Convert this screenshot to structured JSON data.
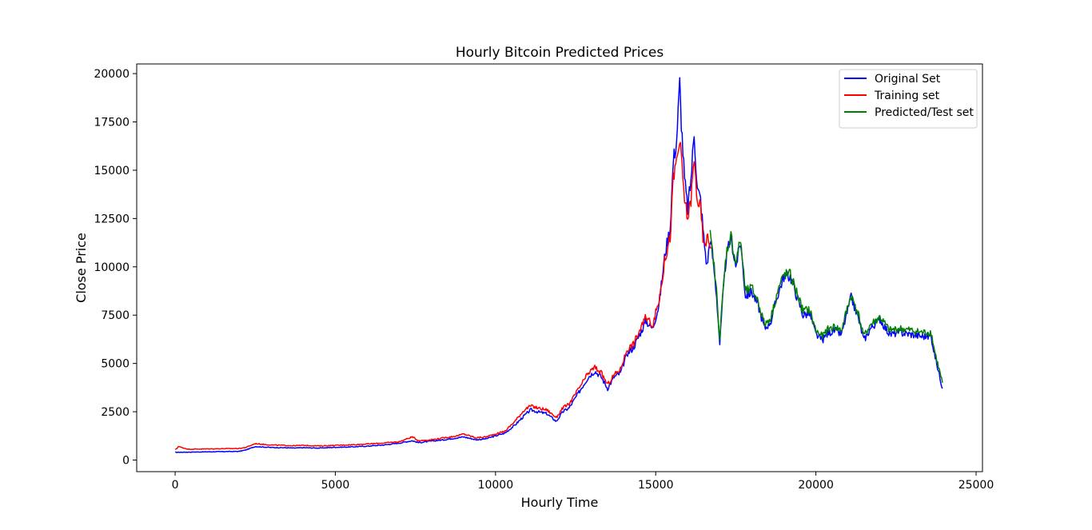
{
  "chart_data": {
    "type": "line",
    "title": "Hourly Bitcoin Predicted Prices",
    "xlabel": "Hourly Time",
    "ylabel": "Close Price",
    "xlim": [
      -1200,
      25200
    ],
    "ylim": [
      -600,
      20500
    ],
    "xticks": [
      0,
      5000,
      10000,
      15000,
      20000,
      25000
    ],
    "yticks": [
      0,
      2500,
      5000,
      7500,
      10000,
      12500,
      15000,
      17500,
      20000
    ],
    "grid": false,
    "legend_position": "top-right",
    "series": [
      {
        "name": "Original Set",
        "color": "#0000ff",
        "x": [
          0,
          400,
          800,
          1200,
          1600,
          2000,
          2200,
          2500,
          2700,
          3000,
          3400,
          3700,
          4000,
          4500,
          5000,
          5500,
          6000,
          6500,
          7000,
          7400,
          7600,
          8000,
          8400,
          8800,
          9000,
          9400,
          9700,
          10000,
          10300,
          10600,
          10900,
          11100,
          11300,
          11600,
          11900,
          12100,
          12300,
          12600,
          12900,
          13100,
          13300,
          13500,
          13700,
          13900,
          14100,
          14300,
          14500,
          14700,
          14900,
          15100,
          15300,
          15450,
          15550,
          15650,
          15750,
          15800,
          15900,
          16000,
          16100,
          16200,
          16300,
          16400,
          16500,
          16600,
          16700,
          16800,
          16900,
          17000,
          17100,
          17200,
          17350,
          17500,
          17650,
          17800,
          18000,
          18200,
          18400,
          18600,
          18800,
          19000,
          19200,
          19400,
          19600,
          19800,
          20000,
          20200,
          20400,
          20600,
          20800,
          21000,
          21100,
          21300,
          21500,
          21700,
          22000,
          22300,
          22600,
          23000,
          23300,
          23600,
          23700,
          23800,
          23950
        ],
        "values": [
          400,
          410,
          420,
          430,
          440,
          450,
          520,
          700,
          680,
          650,
          640,
          620,
          640,
          620,
          660,
          680,
          720,
          780,
          880,
          1000,
          900,
          980,
          1050,
          1150,
          1200,
          1050,
          1100,
          1250,
          1400,
          1800,
          2300,
          2600,
          2500,
          2400,
          2000,
          2500,
          2700,
          3500,
          4300,
          4600,
          4300,
          3700,
          4300,
          4500,
          5500,
          5800,
          6500,
          7200,
          6800,
          8000,
          10800,
          12000,
          15500,
          16500,
          19500,
          17500,
          14500,
          13000,
          14500,
          17000,
          14000,
          13500,
          11500,
          10000,
          11500,
          10200,
          8500,
          6000,
          8500,
          10500,
          11500,
          10000,
          11300,
          8500,
          8700,
          8000,
          6800,
          7200,
          8500,
          9500,
          9500,
          8500,
          7500,
          7600,
          6500,
          6200,
          6600,
          6700,
          6500,
          7800,
          8400,
          7500,
          6200,
          6800,
          7300,
          6500,
          6600,
          6500,
          6400,
          6400,
          5500,
          4800,
          3700
        ]
      },
      {
        "name": "Training set",
        "color": "#ff0000",
        "x": [
          0,
          50,
          100,
          400,
          800,
          1200,
          1600,
          2000,
          2200,
          2500,
          2700,
          3000,
          3400,
          3700,
          4000,
          4500,
          5000,
          5500,
          6000,
          6500,
          7000,
          7400,
          7600,
          8000,
          8400,
          8800,
          9000,
          9400,
          9700,
          10000,
          10300,
          10600,
          10900,
          11100,
          11300,
          11600,
          11900,
          12100,
          12300,
          12600,
          12900,
          13100,
          13300,
          13500,
          13700,
          13900,
          14100,
          14300,
          14500,
          14700,
          14900,
          15100,
          15300,
          15450,
          15550,
          15650,
          15750,
          15800,
          15900,
          16000,
          16100,
          16200,
          16300,
          16400,
          16500,
          16600,
          16750
        ],
        "values": [
          550,
          600,
          700,
          560,
          570,
          580,
          590,
          600,
          650,
          850,
          820,
          780,
          760,
          740,
          760,
          730,
          760,
          790,
          830,
          880,
          950,
          1200,
          1000,
          1050,
          1150,
          1250,
          1350,
          1150,
          1200,
          1350,
          1500,
          2000,
          2600,
          2800,
          2700,
          2600,
          2200,
          2700,
          2900,
          3700,
          4500,
          4800,
          4500,
          3900,
          4400,
          4700,
          5700,
          6000,
          6700,
          7400,
          7000,
          8200,
          10500,
          11500,
          14500,
          15500,
          16500,
          15500,
          13500,
          12500,
          13500,
          15500,
          13500,
          13000,
          11000,
          11500,
          11000
        ]
      },
      {
        "name": "Predicted/Test set",
        "color": "#008000",
        "x": [
          16700,
          16800,
          16900,
          17000,
          17100,
          17200,
          17350,
          17500,
          17650,
          17800,
          18000,
          18200,
          18400,
          18600,
          18800,
          19000,
          19200,
          19400,
          19600,
          19800,
          20000,
          20200,
          20400,
          20600,
          20800,
          21000,
          21100,
          21300,
          21500,
          21700,
          22000,
          22300,
          22600,
          23000,
          23300,
          23600,
          23700,
          23800,
          23950
        ],
        "values": [
          11600,
          10400,
          8700,
          6300,
          8700,
          10700,
          11600,
          10200,
          11400,
          8700,
          8900,
          8200,
          7000,
          7400,
          8700,
          9600,
          9600,
          8700,
          7700,
          7800,
          6700,
          6400,
          6800,
          6900,
          6700,
          8000,
          8500,
          7700,
          6400,
          7000,
          7400,
          6700,
          6800,
          6700,
          6600,
          6600,
          5700,
          5000,
          4000
        ]
      }
    ]
  }
}
